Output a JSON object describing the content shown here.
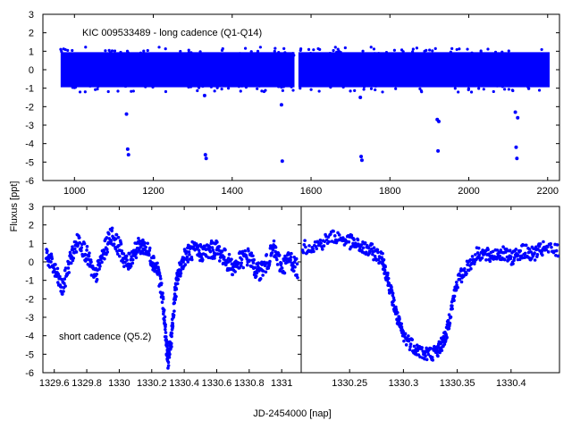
{
  "figure": {
    "y_axis_label": "Fluxus [ppt]",
    "x_axis_label": "JD-2454000 [nap]"
  },
  "chart_data": [
    {
      "id": "long-cadence",
      "type": "scatter",
      "title": "KIC 009533489 - long cadence (Q1-Q14)",
      "xlim": [
        920,
        2230
      ],
      "ylim": [
        -6,
        3
      ],
      "x_ticks": [
        1000,
        1200,
        1400,
        1600,
        1800,
        2000,
        2200
      ],
      "y_ticks": [
        3,
        2,
        1,
        0,
        -1,
        -2,
        -3,
        -4,
        -5,
        -6
      ],
      "x_tick_labels": [
        "1000",
        "1200",
        "1400",
        "1600",
        "1800",
        "2000",
        "2200"
      ],
      "y_tick_labels": [
        "3",
        "2",
        "1",
        "0",
        "-1",
        "-2",
        "-3",
        "-4",
        "-5",
        "-6"
      ],
      "band": {
        "x_segments": [
          [
            965,
            1558
          ],
          [
            1568,
            2205
          ]
        ],
        "y_upper": 0.95,
        "y_lower": -0.95
      },
      "outliers": [
        [
          1132,
          -2.4
        ],
        [
          1135,
          -4.3
        ],
        [
          1137,
          -4.6
        ],
        [
          1330,
          -1.4
        ],
        [
          1332,
          -4.6
        ],
        [
          1334,
          -4.8
        ],
        [
          1525,
          -1.9
        ],
        [
          1527,
          -4.95
        ],
        [
          1530,
          -0.9
        ],
        [
          1725,
          -1.5
        ],
        [
          1727,
          -4.7
        ],
        [
          1729,
          -4.9
        ],
        [
          1920,
          -2.7
        ],
        [
          1922,
          -4.4
        ],
        [
          1924,
          -2.8
        ],
        [
          2118,
          -2.3
        ],
        [
          2120,
          -4.2
        ],
        [
          2122,
          -4.8
        ],
        [
          2124,
          -2.6
        ]
      ],
      "color": "#0000ff",
      "grid": false
    },
    {
      "id": "short-cadence",
      "type": "scatter",
      "annotation": "short cadence (Q5.2)",
      "xlim": [
        1329.53,
        1331.12
      ],
      "ylim": [
        -6,
        3
      ],
      "x_ticks": [
        1329.6,
        1329.8,
        1330,
        1330.2,
        1330.4,
        1330.6,
        1330.8,
        1331
      ],
      "y_ticks": [
        3,
        2,
        1,
        0,
        -1,
        -2,
        -3,
        -4,
        -5,
        -6
      ],
      "x_tick_labels": [
        "1329.6",
        "1329.8",
        "1330",
        "1330.2",
        "1330.4",
        "1330.6",
        "1330.8",
        "1331"
      ],
      "y_tick_labels": [
        "3",
        "2",
        "1",
        "0",
        "-1",
        "-2",
        "-3",
        "-4",
        "-5",
        "-6"
      ],
      "trace": [
        [
          1329.55,
          0.5
        ],
        [
          1329.6,
          -0.4
        ],
        [
          1329.65,
          -1.5
        ],
        [
          1329.7,
          0.2
        ],
        [
          1329.75,
          1.2
        ],
        [
          1329.8,
          0.4
        ],
        [
          1329.85,
          -0.9
        ],
        [
          1329.9,
          0.4
        ],
        [
          1329.95,
          1.5
        ],
        [
          1330.0,
          0.8
        ],
        [
          1330.05,
          -0.2
        ],
        [
          1330.1,
          0.7
        ],
        [
          1330.15,
          0.9
        ],
        [
          1330.2,
          0.2
        ],
        [
          1330.24,
          -0.5
        ],
        [
          1330.27,
          -2.2
        ],
        [
          1330.29,
          -4.5
        ],
        [
          1330.3,
          -5.3
        ],
        [
          1330.32,
          -4.3
        ],
        [
          1330.34,
          -2.0
        ],
        [
          1330.36,
          -0.8
        ],
        [
          1330.4,
          0.3
        ],
        [
          1330.45,
          0.6
        ],
        [
          1330.5,
          0.5
        ],
        [
          1330.55,
          0.6
        ],
        [
          1330.6,
          0.7
        ],
        [
          1330.65,
          0.2
        ],
        [
          1330.7,
          -0.3
        ],
        [
          1330.75,
          0.1
        ],
        [
          1330.8,
          0.3
        ],
        [
          1330.85,
          -0.6
        ],
        [
          1330.9,
          -0.2
        ],
        [
          1330.95,
          0.7
        ],
        [
          1331.0,
          -0.3
        ],
        [
          1331.05,
          0.2
        ],
        [
          1331.1,
          -0.4
        ]
      ],
      "scatter_halfwidth": 0.5,
      "color": "#0000ff",
      "grid": false
    },
    {
      "id": "eclipse-zoom",
      "type": "scatter",
      "xlim": [
        1330.205,
        1330.445
      ],
      "ylim": [
        -6,
        3
      ],
      "x_ticks": [
        1330.25,
        1330.3,
        1330.35,
        1330.4
      ],
      "x_tick_labels": [
        "1330.25",
        "1330.3",
        "1330.35",
        "1330.4"
      ],
      "trace": [
        [
          1330.205,
          0.8
        ],
        [
          1330.22,
          0.9
        ],
        [
          1330.235,
          1.4
        ],
        [
          1330.25,
          1.1
        ],
        [
          1330.26,
          0.8
        ],
        [
          1330.27,
          0.6
        ],
        [
          1330.28,
          0.2
        ],
        [
          1330.285,
          -0.8
        ],
        [
          1330.29,
          -2.0
        ],
        [
          1330.295,
          -3.2
        ],
        [
          1330.3,
          -4.0
        ],
        [
          1330.31,
          -4.6
        ],
        [
          1330.32,
          -5.0
        ],
        [
          1330.33,
          -4.9
        ],
        [
          1330.335,
          -4.5
        ],
        [
          1330.34,
          -3.9
        ],
        [
          1330.345,
          -2.4
        ],
        [
          1330.35,
          -1.1
        ],
        [
          1330.36,
          -0.2
        ],
        [
          1330.37,
          0.5
        ],
        [
          1330.38,
          0.3
        ],
        [
          1330.39,
          0.5
        ],
        [
          1330.4,
          0.2
        ],
        [
          1330.41,
          0.6
        ],
        [
          1330.42,
          0.4
        ],
        [
          1330.43,
          0.7
        ],
        [
          1330.445,
          0.6
        ]
      ],
      "scatter_halfwidth": 0.4,
      "color": "#0000ff",
      "grid": false
    }
  ]
}
